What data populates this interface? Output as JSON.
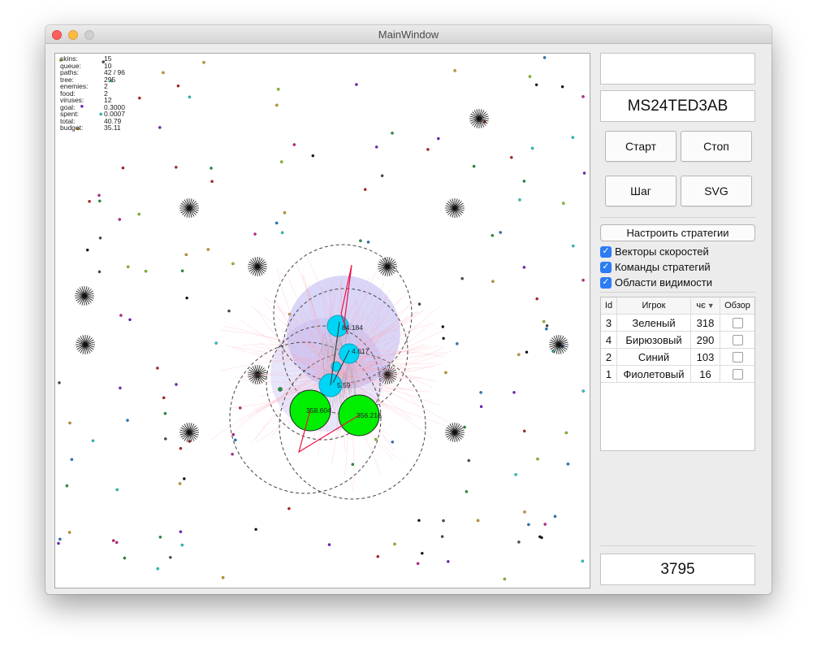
{
  "window": {
    "title": "MainWindow"
  },
  "stats": [
    {
      "label": "skins:",
      "value": "15"
    },
    {
      "label": "queue:",
      "value": "10"
    },
    {
      "label": "paths:",
      "value": "42 / 96"
    },
    {
      "label": "tree:",
      "value": "295"
    },
    {
      "label": "enemies:",
      "value": "2"
    },
    {
      "label": "food:",
      "value": "2"
    },
    {
      "label": "viruses:",
      "value": "12"
    },
    {
      "label": "goal:",
      "value": "0.3000"
    },
    {
      "label": "spent:",
      "value": "0.0007"
    },
    {
      "label": "total:",
      "value": "40.79"
    },
    {
      "label": "budget:",
      "value": "35.11"
    }
  ],
  "game": {
    "cell_labels": [
      "358.604",
      "356.218",
      "5.59",
      "4.617",
      "84.184"
    ],
    "colors": {
      "player": "#00ee00",
      "enemy": "#00d5f5",
      "vision": "#b9b4f2",
      "trail": "#ff9fb0",
      "vector": "#ee1144"
    }
  },
  "panel": {
    "top_field": "",
    "code_field": "MS24TED3AB",
    "start_button": "Старт",
    "stop_button": "Стоп",
    "step_button": "Шаг",
    "svg_button": "SVG",
    "configure_button": "Настроить стратегии",
    "checks": [
      {
        "label": "Векторы скоростей",
        "checked": true
      },
      {
        "label": "Команды стратегий",
        "checked": true
      },
      {
        "label": "Области видимости",
        "checked": true
      }
    ],
    "table": {
      "headers": {
        "id": "Id",
        "player": "Игрок",
        "score": "чє",
        "observe": "Обзор"
      },
      "rows": [
        {
          "id": "3",
          "player": "Зеленый",
          "score": "318"
        },
        {
          "id": "4",
          "player": "Бирюзовый",
          "score": "290"
        },
        {
          "id": "2",
          "player": "Синий",
          "score": "103"
        },
        {
          "id": "1",
          "player": "Фиолетовый",
          "score": "16"
        }
      ]
    },
    "bottom_value": "3795"
  }
}
